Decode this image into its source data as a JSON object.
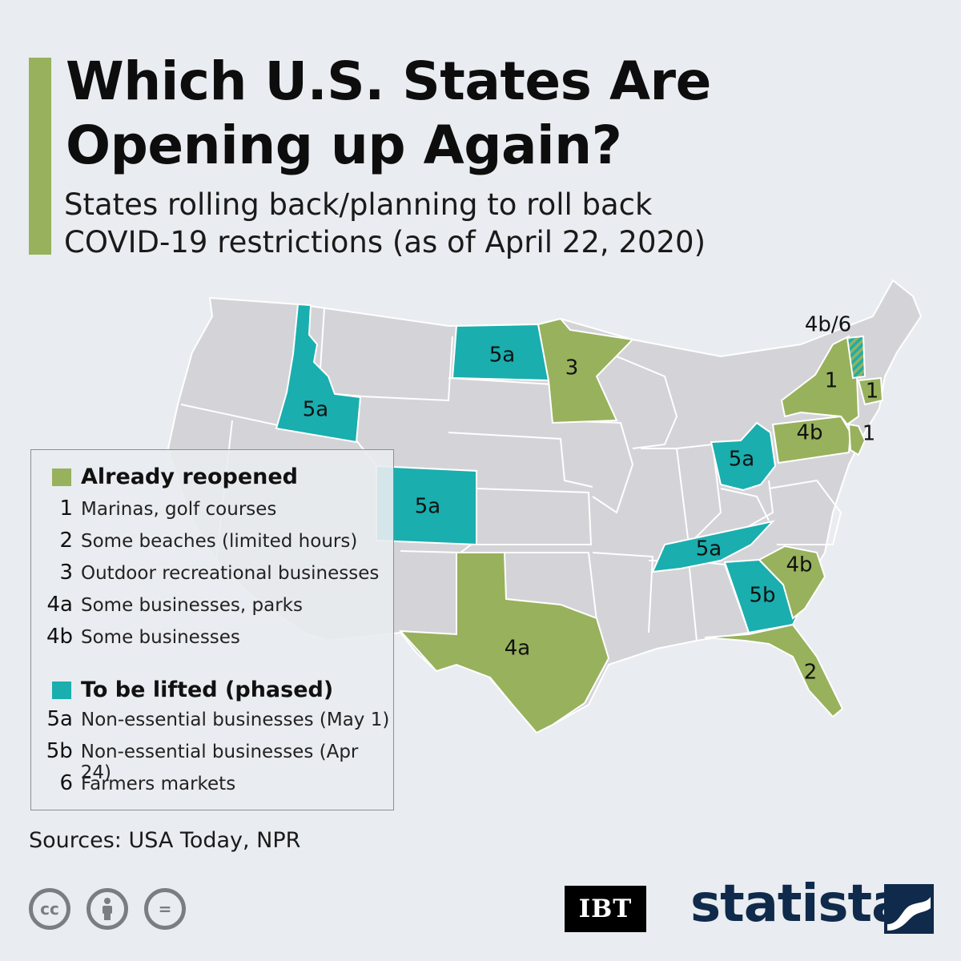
{
  "header": {
    "title": "Which U.S. States Are Opening up Again?",
    "subtitle": "States rolling back/planning to roll back COVID-19 restrictions (as of April 22, 2020)"
  },
  "colors": {
    "background": "#e9ecf0",
    "base_state": "#d4d4d8",
    "state_border": "#ffffff",
    "reopened": "#98b15c",
    "to_be_lifted": "#1aaeae",
    "accent": "#98b15c"
  },
  "map": {
    "states": [
      {
        "state": "Idaho",
        "code": "5a",
        "status": "to_be_lifted"
      },
      {
        "state": "Colorado",
        "code": "5a",
        "status": "to_be_lifted"
      },
      {
        "state": "North Dakota",
        "code": "5a",
        "status": "to_be_lifted"
      },
      {
        "state": "Minnesota",
        "code": "3",
        "status": "reopened"
      },
      {
        "state": "Texas",
        "code": "4a",
        "status": "reopened"
      },
      {
        "state": "Ohio",
        "code": "5a",
        "status": "to_be_lifted"
      },
      {
        "state": "Tennessee",
        "code": "5a",
        "status": "to_be_lifted"
      },
      {
        "state": "Georgia",
        "code": "5b",
        "status": "to_be_lifted"
      },
      {
        "state": "South Carolina",
        "code": "4b",
        "status": "reopened"
      },
      {
        "state": "Florida",
        "code": "2",
        "status": "reopened"
      },
      {
        "state": "Pennsylvania",
        "code": "4b",
        "status": "reopened"
      },
      {
        "state": "New York",
        "code": "1",
        "status": "reopened"
      },
      {
        "state": "New Jersey",
        "code": "1",
        "status": "reopened"
      },
      {
        "state": "Connecticut",
        "code": "1",
        "status": "reopened"
      },
      {
        "state": "Vermont",
        "code": "4b/6",
        "status": "mixed"
      }
    ],
    "labels": {
      "idaho": "5a",
      "colorado": "5a",
      "north_dakota": "5a",
      "minnesota": "3",
      "texas": "4a",
      "ohio": "5a",
      "tennessee": "5a",
      "georgia": "5b",
      "south_carolina": "4b",
      "florida": "2",
      "pennsylvania": "4b",
      "new_york": "1",
      "new_jersey": "1",
      "connecticut": "1",
      "vermont": "4b/6"
    }
  },
  "legend": {
    "reopened": {
      "heading": "Already reopened",
      "items": [
        {
          "code": "1",
          "text": "Marinas, golf courses"
        },
        {
          "code": "2",
          "text": "Some beaches (limited hours)"
        },
        {
          "code": "3",
          "text": "Outdoor recreational businesses"
        },
        {
          "code": "4a",
          "text": "Some businesses, parks"
        },
        {
          "code": "4b",
          "text": "Some businesses"
        }
      ]
    },
    "lifted": {
      "heading": "To be lifted (phased)",
      "items": [
        {
          "code": "5a",
          "text": "Non-essential businesses (May 1)"
        },
        {
          "code": "5b",
          "text": "Non-essential businesses (Apr 24)"
        },
        {
          "code": "6",
          "text": "Farmers markets"
        }
      ]
    }
  },
  "footer": {
    "sources": "Sources: USA Today, NPR",
    "license_icons": [
      "creative-commons-icon",
      "attribution-icon",
      "no-derivatives-icon"
    ],
    "cc_glyph": "cc",
    "nd_glyph": "=",
    "partner_logo": "IBT",
    "brand_logo": "statista"
  }
}
